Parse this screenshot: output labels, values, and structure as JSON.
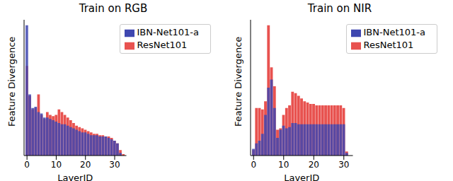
{
  "chart_data": [
    {
      "type": "bar",
      "title": "Train on RGB",
      "x_label": "LayerID",
      "y_label": "Feature Divergence",
      "x": [
        0,
        1,
        2,
        3,
        4,
        5,
        6,
        7,
        8,
        9,
        10,
        11,
        12,
        13,
        14,
        15,
        16,
        17,
        18,
        19,
        20,
        21,
        22,
        23,
        24,
        25,
        26,
        27,
        28,
        29,
        30,
        31,
        32,
        33
      ],
      "series": [
        {
          "name": "ResNet101",
          "color": "#e8524f",
          "values": [
            0.66,
            0.44,
            0.34,
            0.35,
            0.45,
            0.3,
            0.27,
            0.32,
            0.3,
            0.29,
            0.3,
            0.34,
            0.32,
            0.3,
            0.28,
            0.26,
            0.24,
            0.22,
            0.21,
            0.2,
            0.19,
            0.18,
            0.17,
            0.16,
            0.16,
            0.15,
            0.15,
            0.14,
            0.14,
            0.13,
            0.11,
            0.09,
            0.04,
            0.01
          ]
        },
        {
          "name": "IBN-Net101-a",
          "color": "#3f47b0",
          "values": [
            0.96,
            0.45,
            0.35,
            0.36,
            0.32,
            0.31,
            0.28,
            0.28,
            0.27,
            0.26,
            0.25,
            0.24,
            0.23,
            0.23,
            0.22,
            0.21,
            0.2,
            0.19,
            0.18,
            0.17,
            0.17,
            0.16,
            0.15,
            0.15,
            0.15,
            0.14,
            0.14,
            0.14,
            0.13,
            0.12,
            0.11,
            0.09,
            0.02,
            0
          ]
        }
      ],
      "xlim": [
        -1,
        34
      ],
      "xticks": [
        0,
        10,
        20,
        30
      ],
      "ylim": [
        0,
        1
      ],
      "tick_labels": "x",
      "legend": "upper right"
    },
    {
      "type": "bar",
      "title": "Train on NIR",
      "x_label": "LayerID",
      "y_label": "Feature Divergence",
      "x": [
        0,
        1,
        2,
        3,
        4,
        5,
        6,
        7,
        8,
        9,
        10,
        11,
        12,
        13,
        14,
        15,
        16,
        17,
        18,
        19,
        20,
        21,
        22,
        23,
        24,
        25,
        26,
        27,
        28,
        29,
        30,
        31
      ],
      "series": [
        {
          "name": "ResNet101",
          "color": "#e8524f",
          "values": [
            0.04,
            0.35,
            0.35,
            0.34,
            0.4,
            0.96,
            0.65,
            0.51,
            0.19,
            0.2,
            0.3,
            0.35,
            0.37,
            0.47,
            0.46,
            0.44,
            0.42,
            0.4,
            0.39,
            0.38,
            0.38,
            0.37,
            0.37,
            0.37,
            0.37,
            0.37,
            0.37,
            0.37,
            0.37,
            0.37,
            0.35,
            0.03
          ]
        },
        {
          "name": "IBN-Net101-a",
          "color": "#3f47b0",
          "values": [
            0.05,
            0.09,
            0.11,
            0.16,
            0.3,
            0.5,
            0.56,
            0.35,
            0.13,
            0.19,
            0.22,
            0.2,
            0.21,
            0.24,
            0.24,
            0.23,
            0.23,
            0.23,
            0.23,
            0.23,
            0.23,
            0.23,
            0.23,
            0.23,
            0.23,
            0.23,
            0.23,
            0.23,
            0.23,
            0.23,
            0.23,
            0.02
          ]
        }
      ],
      "xlim": [
        -1,
        33
      ],
      "xticks": [
        0,
        10,
        20,
        30
      ],
      "ylim": [
        0,
        1
      ],
      "tick_labels": "x",
      "legend": "upper right"
    }
  ]
}
